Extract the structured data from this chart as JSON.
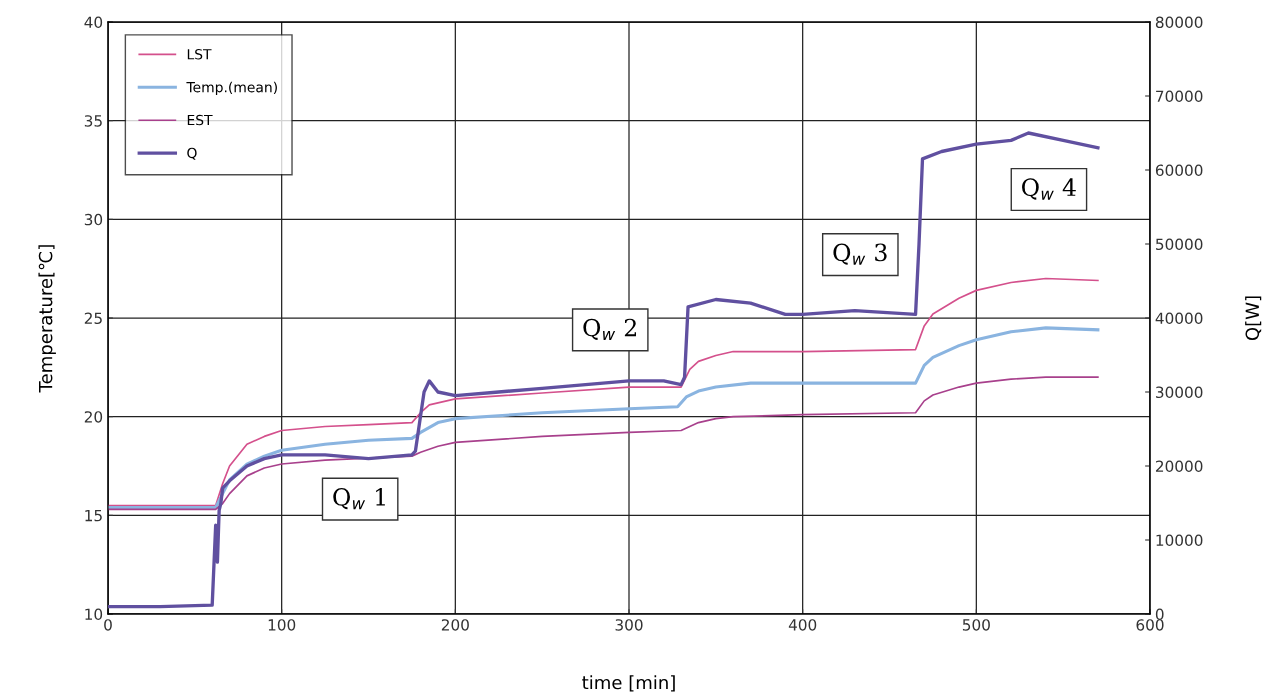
{
  "chart_data": {
    "type": "line",
    "xlabel": "time [min]",
    "ylabel": "Temperature[℃]",
    "y2label": "Q[W]",
    "xlim": [
      0,
      600
    ],
    "xticks": [
      0,
      100,
      200,
      300,
      400,
      500,
      600
    ],
    "ylim": [
      10,
      40
    ],
    "yticks": [
      10,
      15,
      20,
      25,
      30,
      35,
      40
    ],
    "y2lim": [
      0,
      80000
    ],
    "y2ticks": [
      0,
      10000,
      20000,
      30000,
      40000,
      50000,
      60000,
      70000,
      80000
    ],
    "grid": true,
    "legend": "top left",
    "marker": "none",
    "series": [
      {
        "name": "LST",
        "color": "#d4508c",
        "x": [
          0,
          62,
          66,
          70,
          80,
          90,
          100,
          125,
          150,
          175,
          180,
          185,
          200,
          250,
          300,
          330,
          335,
          340,
          350,
          360,
          400,
          465,
          470,
          475,
          490,
          500,
          520,
          540,
          570
        ],
        "values": [
          15.5,
          15.5,
          16.6,
          17.5,
          18.6,
          19.0,
          19.3,
          19.5,
          19.6,
          19.7,
          20.2,
          20.6,
          20.9,
          21.2,
          21.5,
          21.5,
          22.4,
          22.8,
          23.1,
          23.3,
          23.3,
          23.4,
          24.6,
          25.2,
          26.0,
          26.4,
          26.8,
          27.0,
          26.9
        ]
      },
      {
        "name": "Temp.(mean)",
        "color": "#8ab4e0",
        "x": [
          0,
          62,
          66,
          70,
          80,
          90,
          100,
          125,
          150,
          175,
          180,
          190,
          200,
          250,
          300,
          328,
          333,
          340,
          350,
          370,
          400,
          465,
          470,
          475,
          490,
          500,
          520,
          540,
          570
        ],
        "values": [
          15.4,
          15.4,
          16.1,
          16.8,
          17.6,
          18.0,
          18.3,
          18.6,
          18.8,
          18.9,
          19.2,
          19.7,
          19.9,
          20.2,
          20.4,
          20.5,
          21.0,
          21.3,
          21.5,
          21.7,
          21.7,
          21.7,
          22.6,
          23.0,
          23.6,
          23.9,
          24.3,
          24.5,
          24.4
        ]
      },
      {
        "name": "EST",
        "color": "#a8408c",
        "x": [
          0,
          62,
          66,
          70,
          80,
          90,
          100,
          125,
          150,
          175,
          180,
          190,
          200,
          250,
          300,
          330,
          340,
          350,
          360,
          400,
          465,
          470,
          475,
          490,
          500,
          520,
          540,
          570
        ],
        "values": [
          15.3,
          15.3,
          15.6,
          16.1,
          17.0,
          17.4,
          17.6,
          17.8,
          17.9,
          18.0,
          18.2,
          18.5,
          18.7,
          19.0,
          19.2,
          19.3,
          19.7,
          19.9,
          20.0,
          20.1,
          20.2,
          20.8,
          21.1,
          21.5,
          21.7,
          21.9,
          22.0,
          22.0
        ]
      },
      {
        "name": "Q",
        "color": "#6050a0",
        "axis": "y2",
        "x": [
          0,
          30,
          60,
          62,
          63,
          64,
          65,
          66,
          70,
          80,
          90,
          100,
          125,
          150,
          175,
          177,
          182,
          185,
          190,
          200,
          225,
          250,
          275,
          300,
          320,
          330,
          332,
          334,
          350,
          370,
          390,
          400,
          430,
          465,
          467,
          469,
          480,
          500,
          520,
          530,
          550,
          570
        ],
        "values": [
          1000,
          1000,
          1200,
          12000,
          7000,
          14000,
          15000,
          17000,
          18000,
          20000,
          21000,
          21500,
          21500,
          21000,
          21500,
          22000,
          30000,
          31500,
          30000,
          29500,
          30000,
          30500,
          31000,
          31500,
          31500,
          31000,
          32000,
          41500,
          42500,
          42000,
          40500,
          40500,
          41000,
          40500,
          50000,
          61500,
          62500,
          63500,
          64000,
          65000,
          64000,
          63000
        ]
      }
    ],
    "annotations": [
      "Q$_{w}$ 1",
      "Q$_{w}$ 2",
      "Q$_{w}$ 3",
      "Q$_{w}$ 4"
    ]
  }
}
